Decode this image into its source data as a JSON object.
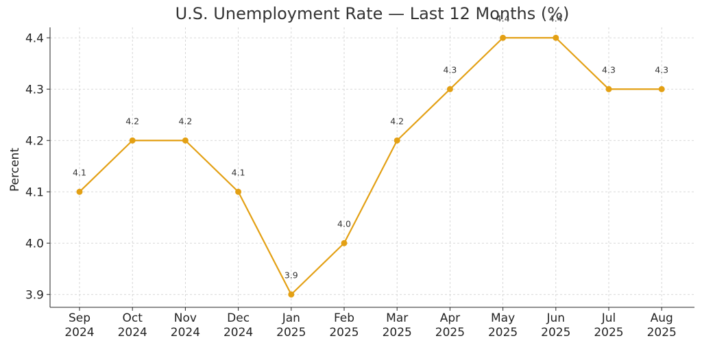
{
  "chart_data": {
    "type": "line",
    "title": "U.S. Unemployment Rate — Last 12 Months (%)",
    "xlabel": "",
    "ylabel": "Percent",
    "categories": [
      [
        "Sep",
        "2024"
      ],
      [
        "Oct",
        "2024"
      ],
      [
        "Nov",
        "2024"
      ],
      [
        "Dec",
        "2024"
      ],
      [
        "Jan",
        "2025"
      ],
      [
        "Feb",
        "2025"
      ],
      [
        "Mar",
        "2025"
      ],
      [
        "Apr",
        "2025"
      ],
      [
        "May",
        "2025"
      ],
      [
        "Jun",
        "2025"
      ],
      [
        "Jul",
        "2025"
      ],
      [
        "Aug",
        "2025"
      ]
    ],
    "values": [
      4.1,
      4.2,
      4.2,
      4.1,
      3.9,
      4.0,
      4.2,
      4.3,
      4.4,
      4.4,
      4.3,
      4.3
    ],
    "data_labels": [
      "4.1",
      "4.2",
      "4.2",
      "4.1",
      "3.9",
      "4.0",
      "4.2",
      "4.3",
      "4.4",
      "4.4",
      "4.3",
      "4.3"
    ],
    "yticks": [
      3.9,
      4.0,
      4.1,
      4.2,
      4.3,
      4.4
    ],
    "ytick_labels": [
      "3.9",
      "4.0",
      "4.1",
      "4.2",
      "4.3",
      "4.4"
    ],
    "ylim": [
      3.875,
      4.425
    ],
    "grid": true,
    "line_color": "#E3A014",
    "grid_color": "#cccccc"
  }
}
